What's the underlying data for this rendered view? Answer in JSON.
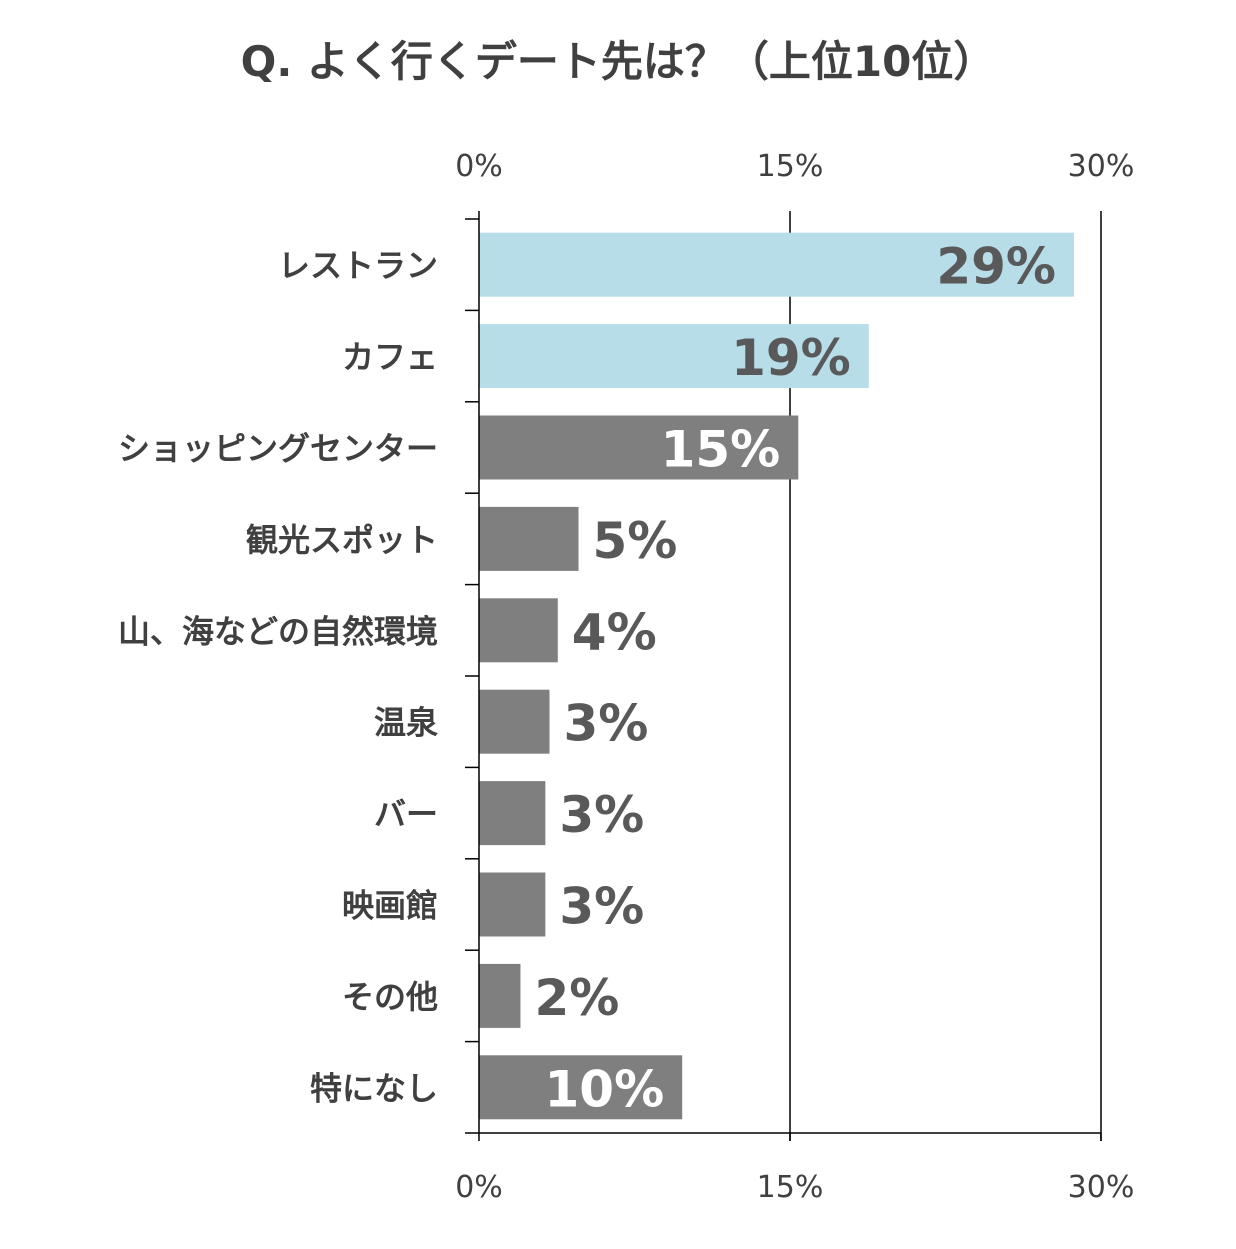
{
  "title": "Q. よく行くデート先は？（上位10位）",
  "chart_data": {
    "type": "bar",
    "orientation": "horizontal",
    "title": "Q. よく行くデート先は？（上位10位）",
    "xlim": [
      0,
      30
    ],
    "x_ticks": [
      0,
      15,
      30
    ],
    "x_tick_labels": [
      "0%",
      "15%",
      "30%"
    ],
    "x_axis_labels_position": "top and bottom",
    "grid": true,
    "categories": [
      "レストラン",
      "カフェ",
      "ショッピングセンター",
      "観光スポット",
      "山、海などの自然環境",
      "温泉",
      "バー",
      "映画館",
      "その他",
      "特になし"
    ],
    "values": [
      28.7,
      18.8,
      15.4,
      4.8,
      3.8,
      3.4,
      3.2,
      3.2,
      2.0,
      9.8
    ],
    "value_labels": [
      "29%",
      "19%",
      "15%",
      "5%",
      "4%",
      "3%",
      "3%",
      "3%",
      "2%",
      "10%"
    ],
    "colors": {
      "highlight": "#b7dde8",
      "default": "#7f7f7f",
      "label_dark": "#595959",
      "label_light": "#ffffff",
      "axis": "#000000",
      "text": "#404040"
    },
    "bar_colors": [
      "highlight",
      "highlight",
      "default",
      "default",
      "default",
      "default",
      "default",
      "default",
      "default",
      "default"
    ],
    "label_inside": [
      true,
      true,
      true,
      false,
      false,
      false,
      false,
      false,
      false,
      true
    ],
    "label_colors": [
      "label_dark",
      "label_dark",
      "label_light",
      "label_dark",
      "label_dark",
      "label_dark",
      "label_dark",
      "label_dark",
      "label_dark",
      "label_light"
    ]
  }
}
